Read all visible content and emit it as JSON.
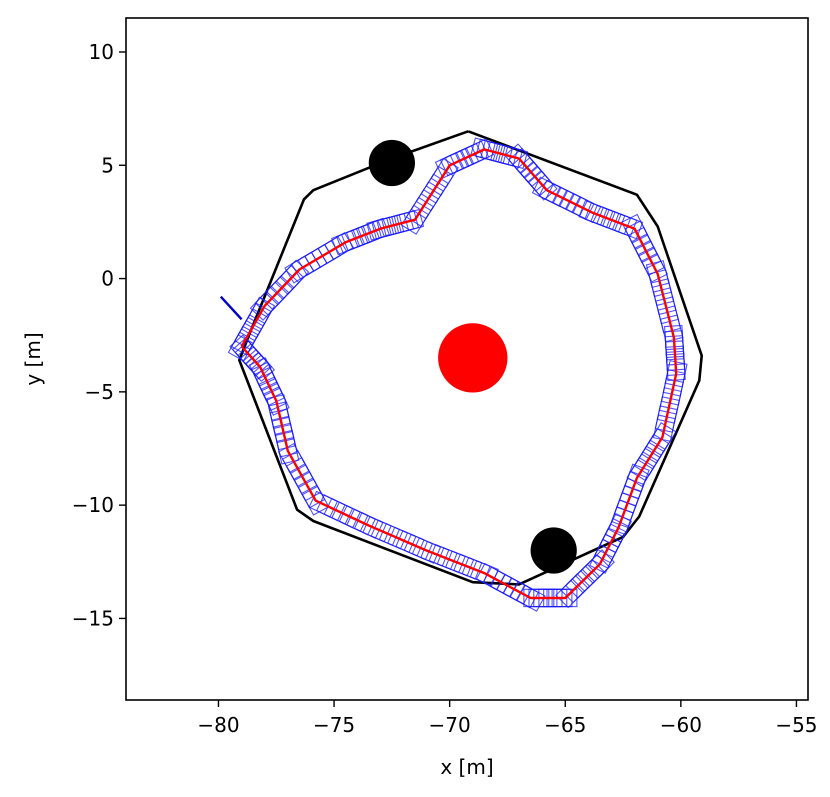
{
  "chart_data": {
    "type": "scatter",
    "title": "",
    "xlabel": "x [m]",
    "ylabel": "y [m]",
    "xlim": [
      -84,
      -54.5
    ],
    "ylim": [
      -18.6,
      11.5
    ],
    "xticks": [
      -80,
      -75,
      -70,
      -65,
      -60,
      -55
    ],
    "yticks": [
      10,
      5,
      0,
      -5,
      -10,
      -15
    ],
    "xtick_labels": [
      "−80",
      "−75",
      "−70",
      "−65",
      "−60",
      "−55"
    ],
    "ytick_labels": [
      "10",
      "5",
      "0",
      "−5",
      "−10",
      "−15"
    ],
    "grid": false,
    "legend": "none",
    "center_marker": {
      "x": -69.0,
      "y": -3.5,
      "radius": 1.5,
      "color": "#ff0000"
    },
    "obstacles": [
      {
        "x": -72.5,
        "y": 5.1,
        "radius": 1.0,
        "color": "#000000"
      },
      {
        "x": -65.5,
        "y": -12.0,
        "radius": 1.0,
        "color": "#000000"
      }
    ],
    "series": [
      {
        "type": "boundary",
        "color": "#000000",
        "x": [
          -69.2,
          -61.9,
          -61.0,
          -59.1,
          -59.2,
          -61.8,
          -62.5,
          -64.0,
          -67.0,
          -69.0,
          -75.9,
          -76.6,
          -79.1,
          -78.6,
          -76.3,
          -75.9,
          -72.5,
          -69.2
        ],
        "y": [
          6.5,
          3.7,
          2.3,
          -3.4,
          -4.5,
          -10.5,
          -11.4,
          -12.1,
          -13.5,
          -13.4,
          -10.7,
          -10.2,
          -3.6,
          -2.3,
          3.5,
          3.9,
          5.3,
          6.5
        ]
      },
      {
        "type": "reference_path",
        "color": "#ff0000",
        "x": [
          -79.0,
          -78.0,
          -76.5,
          -74.5,
          -73.0,
          -71.5,
          -70.0,
          -68.5,
          -67.0,
          -65.8,
          -63.8,
          -62.0,
          -61.0,
          -60.3,
          -60.2,
          -60.8,
          -61.9,
          -62.7,
          -63.5,
          -65.0,
          -66.5,
          -68.5,
          -71.0,
          -73.5,
          -75.8,
          -77.0,
          -77.5,
          -78.2,
          -79.0
        ],
        "y": [
          -3.0,
          -1.2,
          0.4,
          1.6,
          2.2,
          2.6,
          5.0,
          5.7,
          5.3,
          3.9,
          2.9,
          2.2,
          0.2,
          -2.6,
          -4.2,
          -7.0,
          -8.8,
          -11.0,
          -12.6,
          -14.1,
          -14.1,
          -13.0,
          -12.0,
          -10.9,
          -9.8,
          -7.6,
          -5.4,
          -3.9,
          -3.0
        ]
      },
      {
        "type": "vehicle_footprints",
        "color": "#1a1aff",
        "x": [
          -79.0,
          -78.0,
          -76.5,
          -74.5,
          -73.0,
          -71.5,
          -70.0,
          -68.5,
          -67.0,
          -65.8,
          -63.8,
          -62.0,
          -61.0,
          -60.3,
          -60.2,
          -60.8,
          -61.9,
          -62.7,
          -63.5,
          -65.0,
          -66.5,
          -68.5,
          -71.0,
          -73.5,
          -75.8,
          -77.0,
          -77.5,
          -78.2,
          -79.0
        ],
        "y": [
          -3.0,
          -1.2,
          0.4,
          1.6,
          2.2,
          2.6,
          5.0,
          5.7,
          5.3,
          3.9,
          2.9,
          2.2,
          0.2,
          -2.6,
          -4.2,
          -7.0,
          -8.8,
          -11.0,
          -12.6,
          -14.1,
          -14.1,
          -13.0,
          -12.0,
          -10.9,
          -9.8,
          -7.6,
          -5.4,
          -3.9,
          -3.0
        ]
      },
      {
        "type": "start_segment",
        "color": "#0000cc",
        "x": [
          -79.9,
          -79.0
        ],
        "y": [
          -0.8,
          -1.8
        ]
      }
    ]
  }
}
